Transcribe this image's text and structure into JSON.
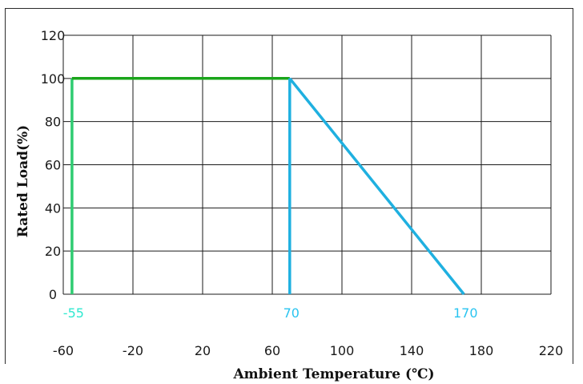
{
  "chart_data": {
    "type": "line",
    "title": "",
    "xlabel": "Ambient Temperature (℃)",
    "ylabel": "Rated Load(%)",
    "xlim": [
      -60,
      220
    ],
    "ylim": [
      0,
      120
    ],
    "x_ticks": [
      "-60",
      "-20",
      "20",
      "60",
      "100",
      "140",
      "180",
      "220"
    ],
    "y_ticks": [
      "0",
      "20",
      "40",
      "60",
      "80",
      "100",
      "120"
    ],
    "grid": true,
    "series": [
      {
        "color": "#2ecc71",
        "points": [
          [
            -55,
            0
          ],
          [
            -55,
            100
          ]
        ]
      },
      {
        "color": "#1aa51a",
        "points": [
          [
            -55,
            100
          ],
          [
            70,
            100
          ]
        ]
      },
      {
        "color": "#1fb0e0",
        "points": [
          [
            70,
            100
          ],
          [
            70,
            0
          ]
        ]
      },
      {
        "color": "#1fb0e0",
        "points": [
          [
            70,
            100
          ],
          [
            170,
            0
          ]
        ]
      }
    ],
    "markers": [
      {
        "label": "-55",
        "x": -55,
        "color": "#2fe8d0"
      },
      {
        "label": "70",
        "x": 70,
        "color": "#29c4f0"
      },
      {
        "label": "170",
        "x": 170,
        "color": "#29c4f0"
      }
    ]
  }
}
